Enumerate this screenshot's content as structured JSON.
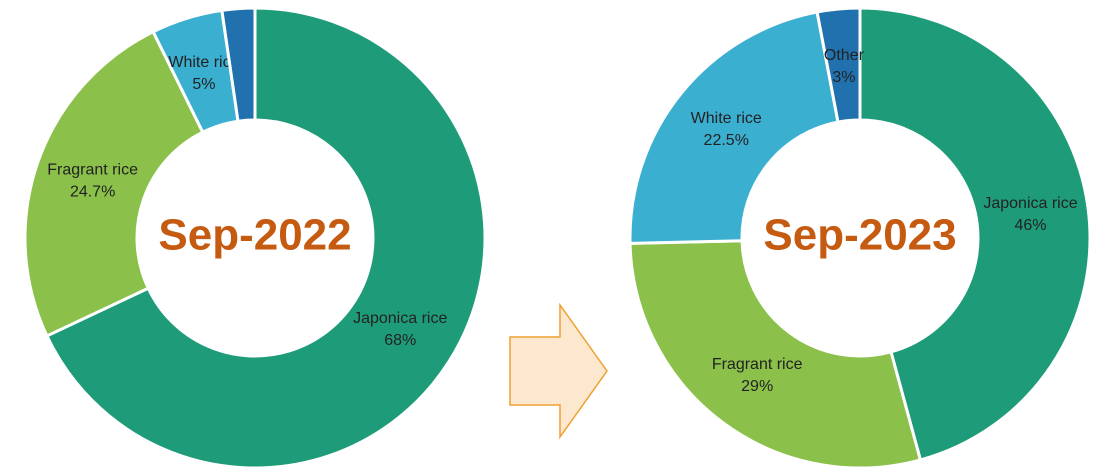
{
  "chart_data": [
    {
      "type": "donut",
      "center_label": "Sep-2022",
      "categories": [
        "Japonica rice",
        "Fragrant rice",
        "White rice",
        null
      ],
      "values": [
        68,
        24.7,
        5,
        2.3
      ],
      "value_labels": [
        "68%",
        "24.7%",
        "5%",
        null
      ],
      "colors": [
        "#1e9b78",
        "#8bc04a",
        "#3aafd0",
        "#2071ae"
      ]
    },
    {
      "type": "donut",
      "center_label": "Sep-2023",
      "categories": [
        "Japonica rice",
        "Fragrant rice",
        "White rice",
        "Other"
      ],
      "values": [
        46,
        29,
        22.5,
        3
      ],
      "value_labels": [
        "46%",
        "29%",
        "22.5%",
        "3%"
      ],
      "colors": [
        "#1e9b78",
        "#8bc04a",
        "#3aafd0",
        "#2071ae"
      ]
    }
  ]
}
